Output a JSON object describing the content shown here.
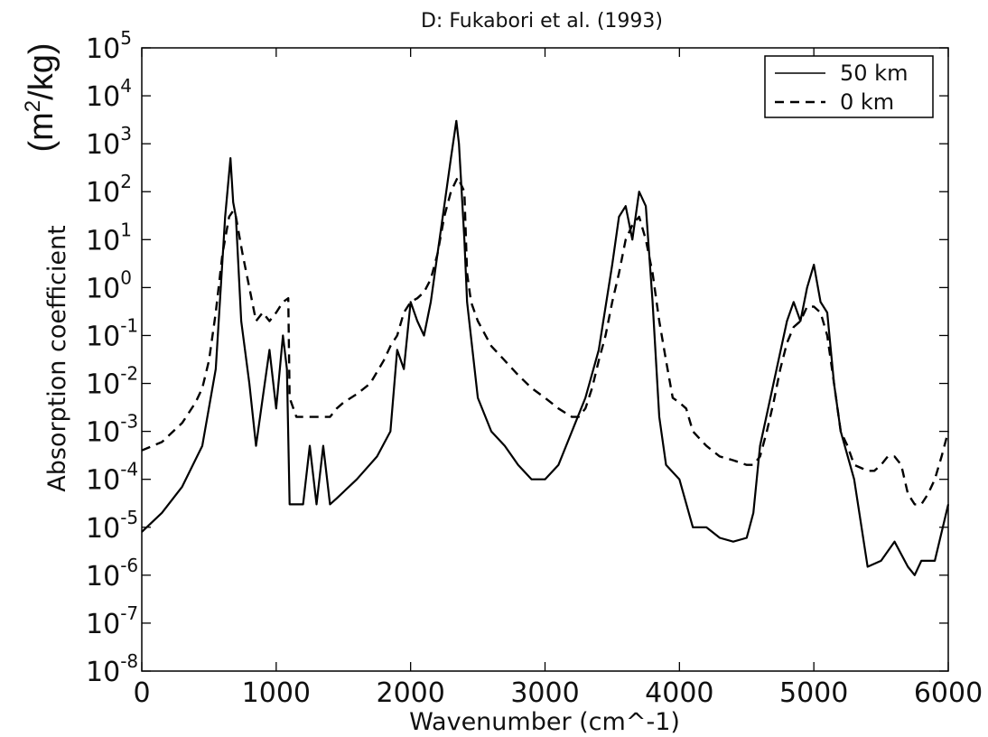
{
  "chart_data": {
    "type": "line",
    "title": "D: Fukabori et al. (1993)",
    "xlabel": "Wavenumber (cm^-1)",
    "ylabel": "Absorption coefficient",
    "ylabel_units": "(m2/kg)",
    "yscale": "log",
    "xlim": [
      0,
      6000
    ],
    "ylim": [
      1e-08,
      100000.0
    ],
    "x_ticks": [
      0,
      1000,
      2000,
      3000,
      4000,
      5000,
      6000
    ],
    "y_ticks": [
      {
        "base": "10",
        "exp": "5"
      },
      {
        "base": "10",
        "exp": "4"
      },
      {
        "base": "10",
        "exp": "3"
      },
      {
        "base": "10",
        "exp": "2"
      },
      {
        "base": "10",
        "exp": "1"
      },
      {
        "base": "10",
        "exp": "0"
      },
      {
        "base": "10",
        "exp": "-1"
      },
      {
        "base": "10",
        "exp": "-2"
      },
      {
        "base": "10",
        "exp": "-3"
      },
      {
        "base": "10",
        "exp": "-4"
      },
      {
        "base": "10",
        "exp": "-5"
      },
      {
        "base": "10",
        "exp": "-6"
      },
      {
        "base": "10",
        "exp": "-7"
      },
      {
        "base": "10",
        "exp": "-8"
      }
    ],
    "legend_position": "top-right",
    "grid": false,
    "series": [
      {
        "name": "50 km",
        "style": "solid",
        "x": [
          0,
          150,
          300,
          450,
          550,
          620,
          660,
          680,
          700,
          740,
          800,
          850,
          900,
          950,
          1000,
          1050,
          1080,
          1100,
          1150,
          1200,
          1250,
          1300,
          1350,
          1400,
          1450,
          1600,
          1750,
          1850,
          1900,
          1950,
          2000,
          2050,
          2100,
          2150,
          2200,
          2250,
          2300,
          2340,
          2360,
          2400,
          2420,
          2500,
          2600,
          2700,
          2800,
          2900,
          3000,
          3100,
          3200,
          3300,
          3400,
          3500,
          3550,
          3600,
          3650,
          3700,
          3750,
          3800,
          3850,
          3900,
          4000,
          4100,
          4200,
          4300,
          4400,
          4500,
          4550,
          4600,
          4700,
          4800,
          4850,
          4900,
          4950,
          5000,
          5050,
          5100,
          5150,
          5200,
          5300,
          5400,
          5500,
          5600,
          5700,
          5750,
          5800,
          5900,
          6000
        ],
        "y": [
          8e-06,
          2e-05,
          7e-05,
          0.0005,
          0.02,
          30,
          500,
          60,
          30,
          0.2,
          0.01,
          0.0005,
          0.005,
          0.05,
          0.003,
          0.1,
          0.02,
          3e-05,
          3e-05,
          3e-05,
          0.0005,
          3e-05,
          0.0005,
          3e-05,
          4e-05,
          0.0001,
          0.0003,
          0.001,
          0.05,
          0.02,
          0.5,
          0.2,
          0.1,
          0.5,
          5,
          50,
          500,
          3000,
          1000,
          10,
          0.5,
          0.005,
          0.001,
          0.0005,
          0.0002,
          0.0001,
          0.0001,
          0.0002,
          0.001,
          0.005,
          0.05,
          3,
          30,
          50,
          10,
          100,
          50,
          0.5,
          0.002,
          0.0002,
          0.0001,
          1e-05,
          1e-05,
          6e-06,
          5e-06,
          6e-06,
          2e-05,
          0.0005,
          0.01,
          0.2,
          0.5,
          0.2,
          1,
          3,
          0.5,
          0.3,
          0.01,
          0.001,
          0.0001,
          1.5e-06,
          2e-06,
          5e-06,
          1.5e-06,
          1e-06,
          2e-06,
          2e-06,
          3e-05
        ]
      },
      {
        "name": "0 km",
        "style": "dashed",
        "x": [
          0,
          150,
          300,
          400,
          450,
          500,
          550,
          600,
          650,
          680,
          700,
          750,
          800,
          850,
          900,
          950,
          1000,
          1050,
          1090,
          1100,
          1150,
          1200,
          1250,
          1300,
          1350,
          1400,
          1450,
          1500,
          1600,
          1700,
          1800,
          1850,
          1900,
          1950,
          2000,
          2050,
          2100,
          2150,
          2200,
          2250,
          2300,
          2350,
          2400,
          2420,
          2450,
          2500,
          2600,
          2700,
          2800,
          2900,
          3000,
          3100,
          3200,
          3250,
          3300,
          3350,
          3400,
          3450,
          3500,
          3550,
          3600,
          3650,
          3700,
          3750,
          3800,
          3850,
          3900,
          3950,
          4000,
          4050,
          4100,
          4200,
          4300,
          4400,
          4500,
          4550,
          4600,
          4650,
          4700,
          4750,
          4800,
          4850,
          4900,
          4950,
          5000,
          5050,
          5100,
          5150,
          5200,
          5250,
          5300,
          5400,
          5450,
          5500,
          5550,
          5600,
          5650,
          5700,
          5750,
          5800,
          5850,
          5900,
          5950,
          6000
        ],
        "y": [
          0.0004,
          0.0006,
          0.0015,
          0.004,
          0.008,
          0.03,
          0.3,
          5,
          30,
          40,
          30,
          5,
          1,
          0.2,
          0.3,
          0.2,
          0.3,
          0.5,
          0.6,
          0.005,
          0.002,
          0.002,
          0.002,
          0.002,
          0.002,
          0.002,
          0.003,
          0.004,
          0.006,
          0.01,
          0.03,
          0.06,
          0.1,
          0.3,
          0.5,
          0.6,
          0.8,
          1.5,
          5,
          30,
          100,
          200,
          100,
          2,
          0.5,
          0.2,
          0.06,
          0.03,
          0.015,
          0.008,
          0.005,
          0.003,
          0.002,
          0.002,
          0.003,
          0.008,
          0.03,
          0.1,
          0.5,
          2,
          10,
          20,
          30,
          10,
          2,
          0.2,
          0.03,
          0.005,
          0.004,
          0.003,
          0.001,
          0.0005,
          0.0003,
          0.00025,
          0.0002,
          0.0002,
          0.0003,
          0.001,
          0.004,
          0.02,
          0.07,
          0.15,
          0.2,
          0.4,
          0.4,
          0.3,
          0.1,
          0.01,
          0.001,
          0.0005,
          0.0002,
          0.00015,
          0.00015,
          0.0002,
          0.0003,
          0.0003,
          0.0002,
          5e-05,
          3e-05,
          3e-05,
          5e-05,
          0.0001,
          0.0003,
          0.001
        ]
      }
    ]
  }
}
